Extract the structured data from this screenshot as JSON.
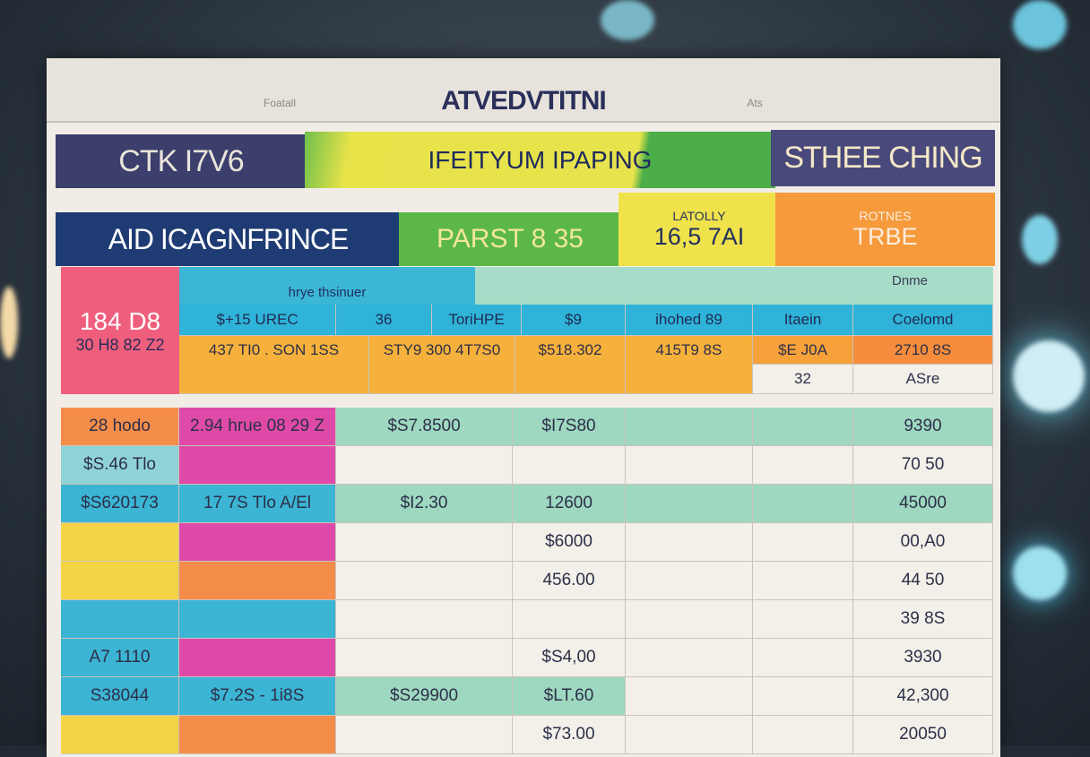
{
  "header": {
    "title": "ATVEDVTITNI",
    "left_note": "Foatall",
    "right_note": "Ats"
  },
  "banner_row": [
    "CTK I7V6",
    "IFEITYUM IPAPING",
    "STHEE CHING"
  ],
  "summary_row": {
    "left": "AID ICAGNFRINCE",
    "middle": "PARST 8 35",
    "stat_label": "LATOLLY",
    "stat_value": "16,5 7AI",
    "tag_label": "ROTNES",
    "tag_value": "TRBE"
  },
  "side_block": [
    "184 D8",
    "30 H8 82 Z2"
  ],
  "table_header": {
    "group": "hrye thsinuer",
    "note": "Dnme",
    "columns": [
      "$+15 UREC",
      "36",
      "ToriHPE",
      "$9",
      "ihohed 89",
      "Itaein",
      "Coelomd"
    ]
  },
  "table_top_rows": [
    [
      "437 TI0 . SON 1SS",
      "STY9 300 4T7S0",
      "$518.302",
      "415T9 8S",
      "$E J0A",
      "2710 8S"
    ],
    [
      "32",
      "ASre"
    ]
  ],
  "table": {
    "rows": [
      [
        "28 hodo",
        "2.94 hrue 08 29 Z",
        "$S7.8500",
        "$I7S80",
        null,
        null,
        "9390"
      ],
      [
        "$S.46 Tlo",
        null,
        null,
        null,
        null,
        null,
        "70 50"
      ],
      [
        "$S620173",
        "17 7S Tlo A/El",
        "$I2.30",
        "12600",
        null,
        null,
        "45000"
      ],
      [
        null,
        null,
        null,
        "$6000",
        null,
        null,
        "00,A0"
      ],
      [
        null,
        null,
        null,
        "456.00",
        null,
        null,
        "44 50"
      ],
      [
        null,
        null,
        null,
        null,
        null,
        null,
        "39 8S"
      ],
      [
        "A7 1110",
        null,
        null,
        "$S4,00",
        null,
        null,
        "3930"
      ],
      [
        "S38044",
        "$7.2S - 1i8S",
        "$S29900",
        "$LT.60",
        null,
        null,
        "42,300"
      ],
      [
        null,
        null,
        null,
        "$73.00",
        null,
        null,
        "20050"
      ]
    ]
  }
}
